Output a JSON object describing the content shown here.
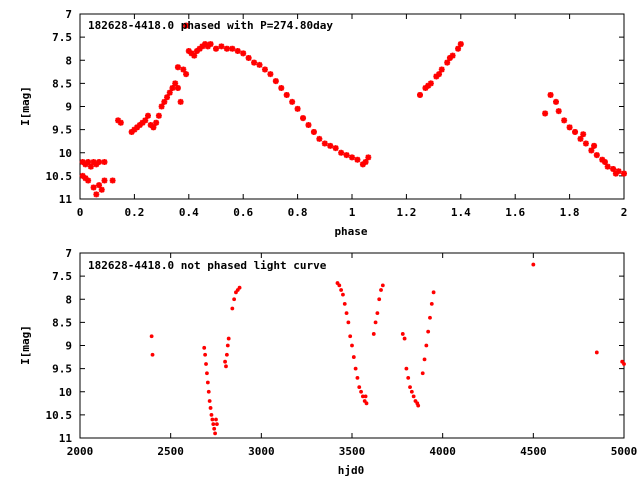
{
  "chart_data": [
    {
      "type": "scatter",
      "title": "182628-4418.0 phased with P=274.80day",
      "xlabel": "phase",
      "ylabel": "I[mag]",
      "xlim": [
        0,
        2
      ],
      "ylim": [
        11,
        7
      ],
      "y_inverted": true,
      "grid": false,
      "marker": "star",
      "color": "#ff0000",
      "x_ticks": [
        "0",
        "0.2",
        "0.4",
        "0.6",
        "0.8",
        "1",
        "1.2",
        "1.4",
        "1.6",
        "1.8",
        "2"
      ],
      "y_ticks": [
        "7",
        "7.5",
        "8",
        "8.5",
        "9",
        "9.5",
        "10",
        "10.5",
        "11"
      ],
      "series": [
        {
          "points": [
            [
              0.01,
              10.2
            ],
            [
              0.02,
              10.25
            ],
            [
              0.03,
              10.2
            ],
            [
              0.04,
              10.3
            ],
            [
              0.05,
              10.2
            ],
            [
              0.06,
              10.25
            ],
            [
              0.07,
              10.2
            ],
            [
              0.09,
              10.2
            ],
            [
              0.01,
              10.5
            ],
            [
              0.02,
              10.55
            ],
            [
              0.03,
              10.6
            ],
            [
              0.05,
              10.75
            ],
            [
              0.06,
              10.9
            ],
            [
              0.07,
              10.7
            ],
            [
              0.08,
              10.8
            ],
            [
              0.09,
              10.6
            ],
            [
              0.12,
              10.6
            ],
            [
              0.14,
              9.3
            ],
            [
              0.15,
              9.35
            ],
            [
              0.19,
              9.55
            ],
            [
              0.2,
              9.5
            ],
            [
              0.21,
              9.45
            ],
            [
              0.22,
              9.4
            ],
            [
              0.23,
              9.35
            ],
            [
              0.24,
              9.3
            ],
            [
              0.25,
              9.2
            ],
            [
              0.26,
              9.4
            ],
            [
              0.27,
              9.45
            ],
            [
              0.28,
              9.35
            ],
            [
              0.29,
              9.2
            ],
            [
              0.3,
              9.0
            ],
            [
              0.31,
              8.9
            ],
            [
              0.32,
              8.8
            ],
            [
              0.33,
              8.7
            ],
            [
              0.34,
              8.6
            ],
            [
              0.35,
              8.5
            ],
            [
              0.36,
              8.6
            ],
            [
              0.37,
              8.9
            ],
            [
              0.38,
              8.2
            ],
            [
              0.39,
              8.3
            ],
            [
              0.36,
              8.15
            ],
            [
              0.39,
              7.25
            ],
            [
              0.4,
              7.8
            ],
            [
              0.41,
              7.85
            ],
            [
              0.42,
              7.9
            ],
            [
              0.43,
              7.8
            ],
            [
              0.44,
              7.75
            ],
            [
              0.45,
              7.7
            ],
            [
              0.46,
              7.65
            ],
            [
              0.47,
              7.7
            ],
            [
              0.48,
              7.65
            ],
            [
              0.5,
              7.75
            ],
            [
              0.52,
              7.7
            ],
            [
              0.54,
              7.75
            ],
            [
              0.56,
              7.75
            ],
            [
              0.58,
              7.8
            ],
            [
              0.6,
              7.85
            ],
            [
              0.62,
              7.95
            ],
            [
              0.64,
              8.05
            ],
            [
              0.66,
              8.1
            ],
            [
              0.68,
              8.2
            ],
            [
              0.7,
              8.3
            ],
            [
              0.72,
              8.45
            ],
            [
              0.74,
              8.6
            ],
            [
              0.76,
              8.75
            ],
            [
              0.78,
              8.9
            ],
            [
              0.8,
              9.05
            ],
            [
              0.82,
              9.25
            ],
            [
              0.84,
              9.4
            ],
            [
              0.86,
              9.55
            ],
            [
              0.88,
              9.7
            ],
            [
              0.9,
              9.8
            ],
            [
              0.92,
              9.85
            ],
            [
              0.94,
              9.9
            ],
            [
              0.96,
              10.0
            ],
            [
              0.98,
              10.05
            ],
            [
              1.0,
              10.1
            ],
            [
              1.02,
              10.15
            ],
            [
              1.04,
              10.25
            ],
            [
              1.06,
              10.1
            ],
            [
              1.05,
              10.2
            ],
            [
              1.25,
              8.75
            ],
            [
              1.27,
              8.6
            ],
            [
              1.29,
              8.5
            ],
            [
              1.31,
              8.35
            ],
            [
              1.33,
              8.2
            ],
            [
              1.35,
              8.05
            ],
            [
              1.37,
              7.9
            ],
            [
              1.39,
              7.75
            ],
            [
              1.4,
              7.65
            ],
            [
              1.28,
              8.55
            ],
            [
              1.32,
              8.3
            ],
            [
              1.36,
              7.95
            ],
            [
              1.71,
              9.15
            ],
            [
              1.73,
              8.75
            ],
            [
              1.75,
              8.9
            ],
            [
              1.76,
              9.1
            ],
            [
              1.78,
              9.3
            ],
            [
              1.8,
              9.45
            ],
            [
              1.82,
              9.55
            ],
            [
              1.84,
              9.7
            ],
            [
              1.86,
              9.8
            ],
            [
              1.88,
              9.95
            ],
            [
              1.9,
              10.05
            ],
            [
              1.92,
              10.15
            ],
            [
              1.94,
              10.3
            ],
            [
              1.96,
              10.35
            ],
            [
              1.98,
              10.4
            ],
            [
              2.0,
              10.45
            ],
            [
              1.85,
              9.6
            ],
            [
              1.89,
              9.85
            ],
            [
              1.93,
              10.2
            ],
            [
              1.97,
              10.45
            ]
          ]
        }
      ]
    },
    {
      "type": "scatter",
      "title": "182628-4418.0 not phased light curve",
      "xlabel": "hjd0",
      "ylabel": "I[mag]",
      "xlim": [
        2000,
        5000
      ],
      "ylim": [
        11,
        7
      ],
      "y_inverted": true,
      "grid": false,
      "marker": "dot",
      "color": "#ff0000",
      "x_ticks": [
        "2000",
        "2500",
        "3000",
        "3500",
        "4000",
        "4500",
        "5000"
      ],
      "y_ticks": [
        "7",
        "7.5",
        "8",
        "8.5",
        "9",
        "9.5",
        "10",
        "10.5",
        "11"
      ],
      "series": [
        {
          "points": [
            [
              2395,
              8.8
            ],
            [
              2400,
              9.2
            ],
            [
              2685,
              9.05
            ],
            [
              2690,
              9.2
            ],
            [
              2695,
              9.4
            ],
            [
              2700,
              9.6
            ],
            [
              2705,
              9.8
            ],
            [
              2710,
              10.0
            ],
            [
              2715,
              10.2
            ],
            [
              2720,
              10.35
            ],
            [
              2725,
              10.5
            ],
            [
              2730,
              10.6
            ],
            [
              2735,
              10.7
            ],
            [
              2740,
              10.8
            ],
            [
              2745,
              10.9
            ],
            [
              2750,
              10.6
            ],
            [
              2755,
              10.7
            ],
            [
              2800,
              9.35
            ],
            [
              2805,
              9.45
            ],
            [
              2810,
              9.2
            ],
            [
              2815,
              9.0
            ],
            [
              2820,
              8.85
            ],
            [
              2840,
              8.2
            ],
            [
              2850,
              8.0
            ],
            [
              2860,
              7.85
            ],
            [
              2870,
              7.8
            ],
            [
              2880,
              7.75
            ],
            [
              3420,
              7.65
            ],
            [
              3430,
              7.7
            ],
            [
              3440,
              7.8
            ],
            [
              3450,
              7.9
            ],
            [
              3460,
              8.1
            ],
            [
              3470,
              8.3
            ],
            [
              3480,
              8.5
            ],
            [
              3490,
              8.8
            ],
            [
              3500,
              9.0
            ],
            [
              3510,
              9.25
            ],
            [
              3520,
              9.5
            ],
            [
              3530,
              9.7
            ],
            [
              3540,
              9.9
            ],
            [
              3550,
              10.0
            ],
            [
              3560,
              10.1
            ],
            [
              3570,
              10.2
            ],
            [
              3580,
              10.25
            ],
            [
              3575,
              10.1
            ],
            [
              3620,
              8.75
            ],
            [
              3630,
              8.5
            ],
            [
              3640,
              8.3
            ],
            [
              3650,
              8.0
            ],
            [
              3660,
              7.8
            ],
            [
              3670,
              7.7
            ],
            [
              3780,
              8.75
            ],
            [
              3790,
              8.85
            ],
            [
              3800,
              9.5
            ],
            [
              3810,
              9.7
            ],
            [
              3820,
              9.9
            ],
            [
              3830,
              10.0
            ],
            [
              3840,
              10.1
            ],
            [
              3850,
              10.2
            ],
            [
              3860,
              10.25
            ],
            [
              3865,
              10.3
            ],
            [
              3890,
              9.6
            ],
            [
              3900,
              9.3
            ],
            [
              3910,
              9.0
            ],
            [
              3920,
              8.7
            ],
            [
              3930,
              8.4
            ],
            [
              3940,
              8.1
            ],
            [
              3950,
              7.85
            ],
            [
              4500,
              7.25
            ],
            [
              4850,
              9.15
            ],
            [
              4990,
              9.35
            ],
            [
              5000,
              9.4
            ]
          ]
        }
      ]
    }
  ]
}
